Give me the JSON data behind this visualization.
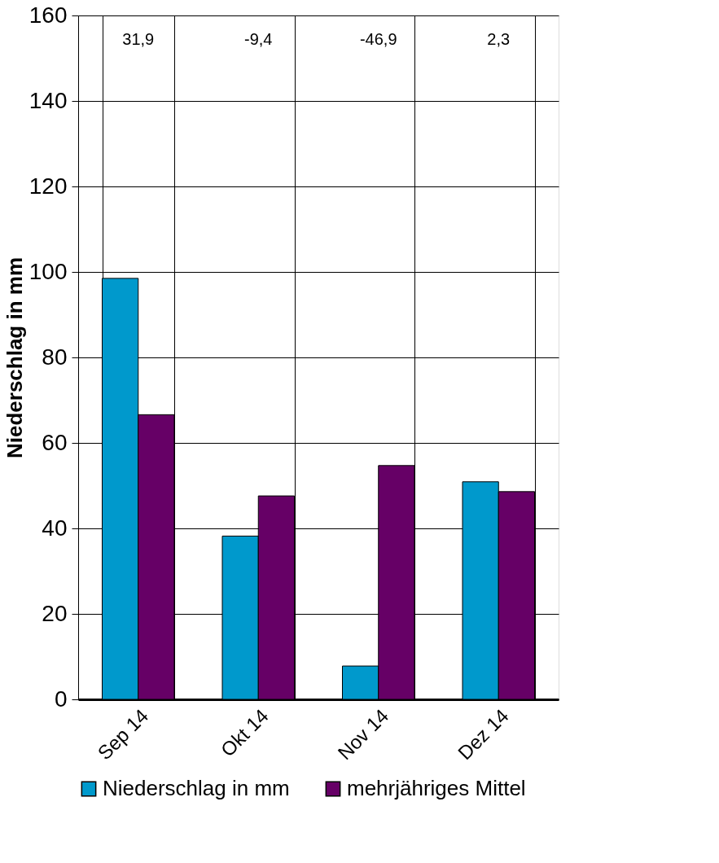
{
  "chart_data": {
    "type": "bar",
    "ylabel": "Niederschlag in mm",
    "categories": [
      "Sep 14",
      "Okt 14",
      "Nov 14",
      "Dez 14"
    ],
    "series": [
      {
        "name": "Niederschlag in mm",
        "color": "#0099cc",
        "values": [
          98.5,
          38.2,
          7.8,
          50.9
        ]
      },
      {
        "name": "mehrjähriges Mittel",
        "color": "#660066",
        "values": [
          66.6,
          47.6,
          54.7,
          48.6
        ]
      }
    ],
    "annotations": [
      "31,9",
      "-9,4",
      "-46,9",
      "2,3"
    ],
    "ylim": [
      0,
      160
    ],
    "yticks": [
      0,
      20,
      40,
      60,
      80,
      100,
      120,
      140,
      160
    ],
    "grid": true,
    "legend": "bottom"
  }
}
